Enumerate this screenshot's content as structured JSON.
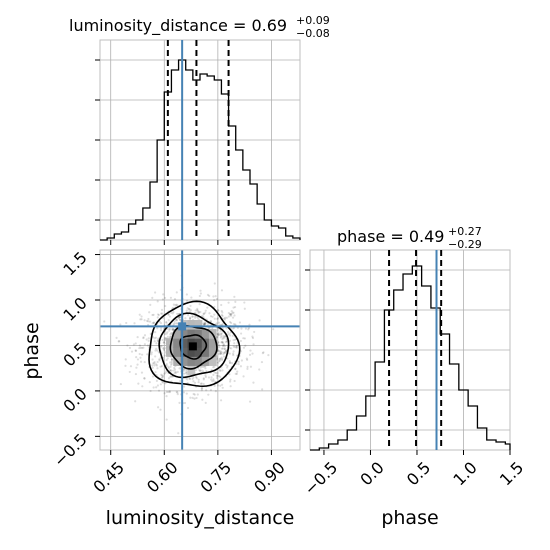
{
  "chart_data": {
    "type": "corner",
    "parameters": [
      "luminosity_distance",
      "phase"
    ],
    "truths": {
      "luminosity_distance": 0.65,
      "phase": 0.71
    },
    "grid": true,
    "panels": [
      {
        "id": "hist_luminosity_distance",
        "type": "histogram",
        "parameter": "luminosity_distance",
        "title": {
          "text": "luminosity_distance = 0.69",
          "sup": "+0.09",
          "sub": "−0.08"
        },
        "xlim": [
          0.42,
          0.98
        ],
        "ylim": [
          0,
          1.0
        ],
        "quantiles": [
          0.61,
          0.69,
          0.78
        ],
        "truth": 0.65,
        "bin_edges": [
          0.42,
          0.44,
          0.46,
          0.48,
          0.5,
          0.52,
          0.54,
          0.56,
          0.58,
          0.6,
          0.62,
          0.64,
          0.66,
          0.68,
          0.7,
          0.72,
          0.74,
          0.76,
          0.78,
          0.8,
          0.82,
          0.84,
          0.86,
          0.88,
          0.9,
          0.92,
          0.94,
          0.96,
          0.98
        ],
        "counts": [
          0.0,
          0.01,
          0.03,
          0.04,
          0.08,
          0.1,
          0.16,
          0.29,
          0.5,
          0.74,
          0.85,
          0.9,
          0.85,
          0.8,
          0.83,
          0.82,
          0.8,
          0.73,
          0.57,
          0.45,
          0.35,
          0.28,
          0.18,
          0.1,
          0.07,
          0.06,
          0.02,
          0.01
        ]
      },
      {
        "id": "scatter_phase_vs_luminosity_distance",
        "type": "2d-density",
        "x_param": "luminosity_distance",
        "y_param": "phase",
        "xlim": [
          0.42,
          0.98
        ],
        "ylim": [
          -0.65,
          1.55
        ],
        "xticks": [
          0.45,
          0.6,
          0.75,
          0.9
        ],
        "xtick_labels": [
          "0.45",
          "0.60",
          "0.75",
          "0.90"
        ],
        "yticks": [
          -0.5,
          0.0,
          0.5,
          1.0,
          1.5
        ],
        "ytick_labels": [
          "−0.5",
          "0.0",
          "0.5",
          "1.0",
          "1.5"
        ],
        "xlabel": "luminosity_distance",
        "ylabel": "phase",
        "truth": {
          "x": 0.65,
          "y": 0.71
        },
        "center": {
          "x": 0.68,
          "y": 0.49
        },
        "spread": {
          "x": 0.075,
          "y": 0.25
        },
        "contours": [
          {
            "level": 0.5,
            "rx": 0.036,
            "ry": 0.13
          },
          {
            "level": 1.0,
            "rx": 0.065,
            "ry": 0.23
          },
          {
            "level": 1.5,
            "rx": 0.097,
            "ry": 0.34
          },
          {
            "level": 2.0,
            "rx": 0.125,
            "ry": 0.46
          }
        ]
      },
      {
        "id": "hist_phase",
        "type": "histogram",
        "parameter": "phase",
        "title": {
          "text": "phase = 0.49",
          "sup": "+0.27",
          "sub": "−0.29"
        },
        "xlim": [
          -0.65,
          1.5
        ],
        "ylim": [
          0,
          1.0
        ],
        "xticks": [
          -0.5,
          0.0,
          0.5,
          1.0,
          1.5
        ],
        "xtick_labels": [
          "−0.5",
          "0.0",
          "0.5",
          "1.0",
          "1.5"
        ],
        "xlabel": "phase",
        "quantiles": [
          0.2,
          0.49,
          0.76
        ],
        "truth": 0.71,
        "bin_edges": [
          -0.65,
          -0.55,
          -0.45,
          -0.35,
          -0.25,
          -0.15,
          -0.05,
          0.05,
          0.15,
          0.25,
          0.35,
          0.45,
          0.55,
          0.65,
          0.75,
          0.85,
          0.95,
          1.05,
          1.15,
          1.25,
          1.35,
          1.45,
          1.5
        ],
        "counts": [
          0.0,
          0.01,
          0.03,
          0.05,
          0.1,
          0.17,
          0.27,
          0.44,
          0.7,
          0.8,
          0.88,
          0.92,
          0.82,
          0.71,
          0.58,
          0.43,
          0.3,
          0.22,
          0.11,
          0.05,
          0.04,
          0.03
        ]
      }
    ]
  }
}
